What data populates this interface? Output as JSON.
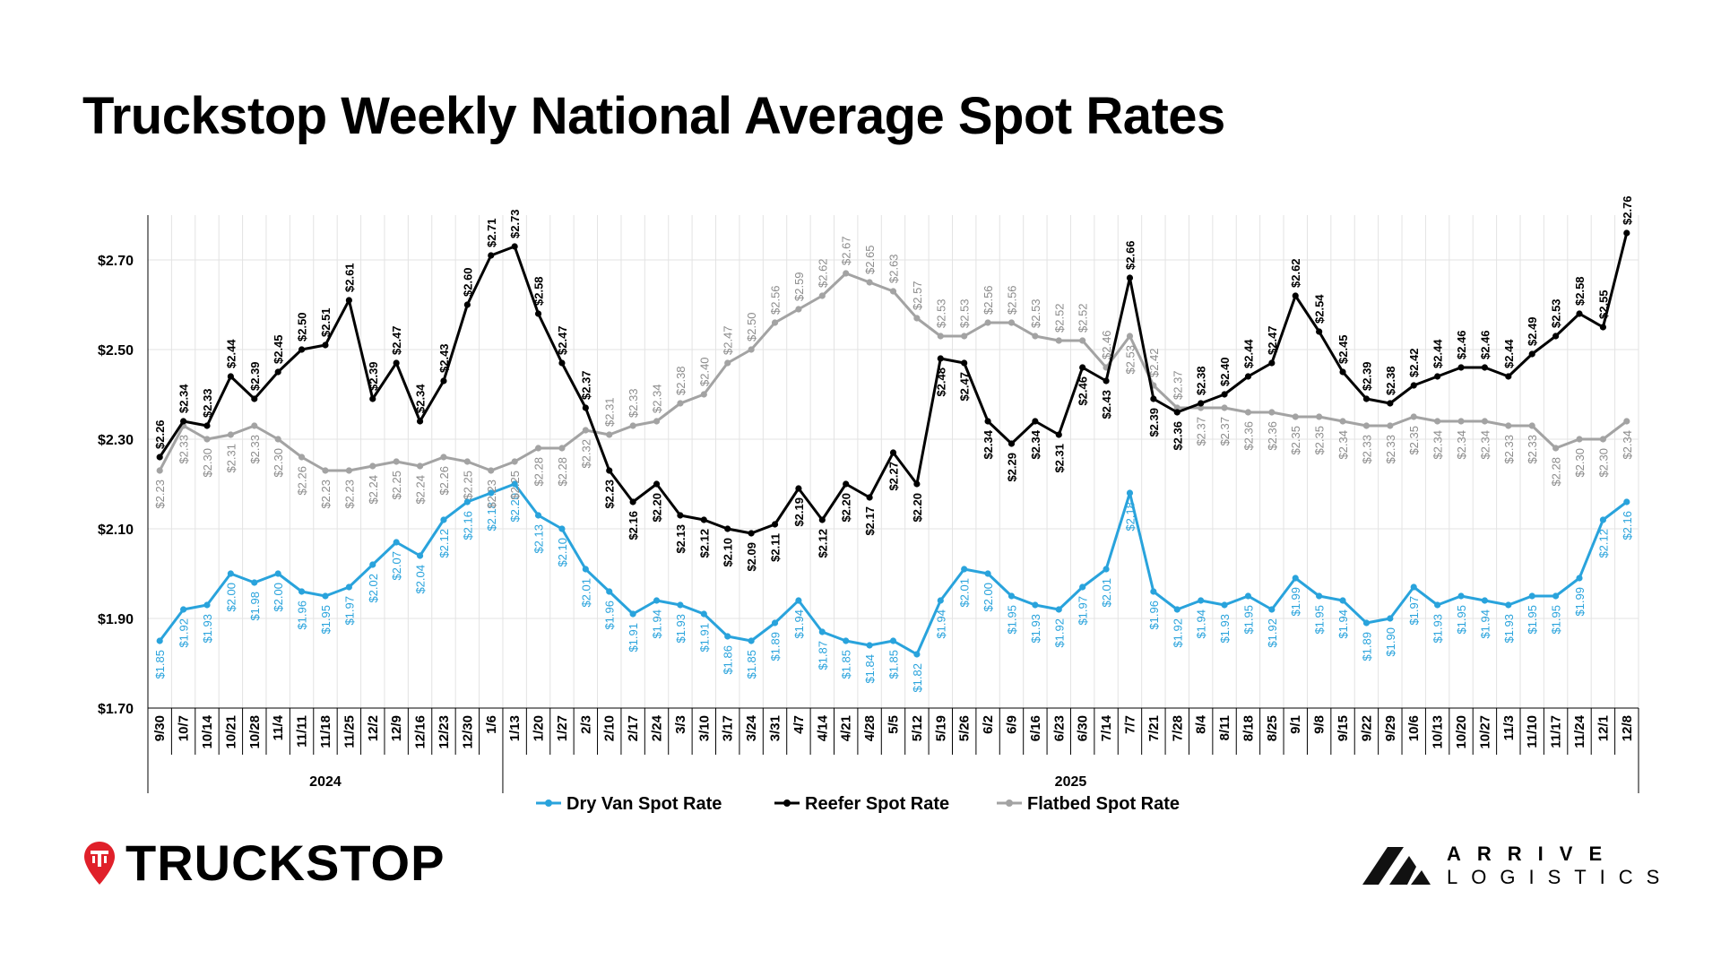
{
  "title": "Truckstop Weekly National Average Spot Rates",
  "brand_left": "TRUCKSTOP",
  "brand_right": {
    "line1": "ARRIVE",
    "line2": "LOGISTICS"
  },
  "colors": {
    "dry_van": "#29a3dc",
    "reefer": "#000000",
    "flatbed": "#a3a3a3",
    "brand_red": "#e0202a",
    "grid": "#e3e3e3"
  },
  "chart_data": {
    "type": "line",
    "title": "Truckstop Weekly National Average Spot Rates",
    "ylim": [
      1.7,
      2.8
    ],
    "yticks": [
      1.7,
      1.9,
      2.1,
      2.3,
      2.5,
      2.7
    ],
    "ytick_labels": [
      "$1.70",
      "$1.90",
      "$2.10",
      "$2.30",
      "$2.50",
      "$2.70"
    ],
    "grid": true,
    "legend_position": "bottom",
    "categories": [
      "9/30",
      "10/7",
      "10/14",
      "10/21",
      "10/28",
      "11/4",
      "11/11",
      "11/18",
      "11/25",
      "12/2",
      "12/9",
      "12/16",
      "12/23",
      "12/30",
      "1/6",
      "1/13",
      "1/20",
      "1/27",
      "2/3",
      "2/10",
      "2/17",
      "2/24",
      "3/3",
      "3/10",
      "3/17",
      "3/24",
      "3/31",
      "4/7",
      "4/14",
      "4/21",
      "4/28",
      "5/5",
      "5/12",
      "5/19",
      "5/26",
      "6/2",
      "6/9",
      "6/16",
      "6/23",
      "6/30",
      "7/14",
      "7/7",
      "7/21",
      "7/28",
      "8/4",
      "8/11",
      "8/18",
      "8/25",
      "9/1",
      "9/8",
      "9/15",
      "9/22",
      "9/29",
      "10/6",
      "10/13",
      "10/20",
      "10/27",
      "11/3",
      "11/10",
      "11/17",
      "11/24",
      "12/1",
      "12/8"
    ],
    "year_groups": [
      {
        "label": "2024",
        "start": 0,
        "end": 14
      },
      {
        "label": "2025",
        "start": 15,
        "end": 62
      }
    ],
    "series": [
      {
        "name": "Dry Van Spot Rate",
        "key": "dry_van",
        "values": [
          1.85,
          1.92,
          1.93,
          2.0,
          1.98,
          2.0,
          1.96,
          1.95,
          1.97,
          2.02,
          2.07,
          2.04,
          2.12,
          2.16,
          2.18,
          2.2,
          2.13,
          2.1,
          2.01,
          1.96,
          1.91,
          1.94,
          1.93,
          1.91,
          1.86,
          1.85,
          1.89,
          1.94,
          1.87,
          1.85,
          1.84,
          1.85,
          1.82,
          1.94,
          2.01,
          2.0,
          1.95,
          1.93,
          1.92,
          1.97,
          2.01,
          2.18,
          1.96,
          1.92,
          1.94,
          1.93,
          1.95,
          1.92,
          1.99,
          1.95,
          1.94,
          1.89,
          1.9,
          1.97,
          1.93,
          1.95,
          1.94,
          1.93,
          1.95,
          1.95,
          1.99,
          2.12,
          2.16
        ]
      },
      {
        "name": "Reefer Spot Rate",
        "key": "reefer",
        "values": [
          2.26,
          2.34,
          2.33,
          2.44,
          2.39,
          2.45,
          2.5,
          2.51,
          2.61,
          2.39,
          2.47,
          2.34,
          2.43,
          2.6,
          2.71,
          2.73,
          2.58,
          2.47,
          2.37,
          2.23,
          2.16,
          2.2,
          2.13,
          2.12,
          2.1,
          2.09,
          2.11,
          2.19,
          2.12,
          2.2,
          2.17,
          2.27,
          2.2,
          2.48,
          2.47,
          2.34,
          2.29,
          2.34,
          2.31,
          2.46,
          2.43,
          2.66,
          2.39,
          2.36,
          2.38,
          2.4,
          2.44,
          2.47,
          2.62,
          2.54,
          2.45,
          2.39,
          2.38,
          2.42,
          2.44,
          2.46,
          2.46,
          2.44,
          2.49,
          2.53,
          2.58,
          2.55,
          2.76
        ]
      },
      {
        "name": "Flatbed Spot Rate",
        "key": "flatbed",
        "values": [
          2.23,
          2.33,
          2.3,
          2.31,
          2.33,
          2.3,
          2.26,
          2.23,
          2.23,
          2.24,
          2.25,
          2.24,
          2.26,
          2.25,
          2.23,
          2.25,
          2.28,
          2.28,
          2.32,
          2.31,
          2.33,
          2.34,
          2.38,
          2.4,
          2.47,
          2.5,
          2.56,
          2.59,
          2.62,
          2.67,
          2.65,
          2.63,
          2.57,
          2.53,
          2.53,
          2.56,
          2.56,
          2.53,
          2.52,
          2.52,
          2.46,
          2.53,
          2.42,
          2.37,
          2.37,
          2.37,
          2.36,
          2.36,
          2.35,
          2.35,
          2.34,
          2.33,
          2.33,
          2.35,
          2.34,
          2.34,
          2.34,
          2.33,
          2.33,
          2.28,
          2.3,
          2.3,
          2.34
        ]
      }
    ]
  }
}
